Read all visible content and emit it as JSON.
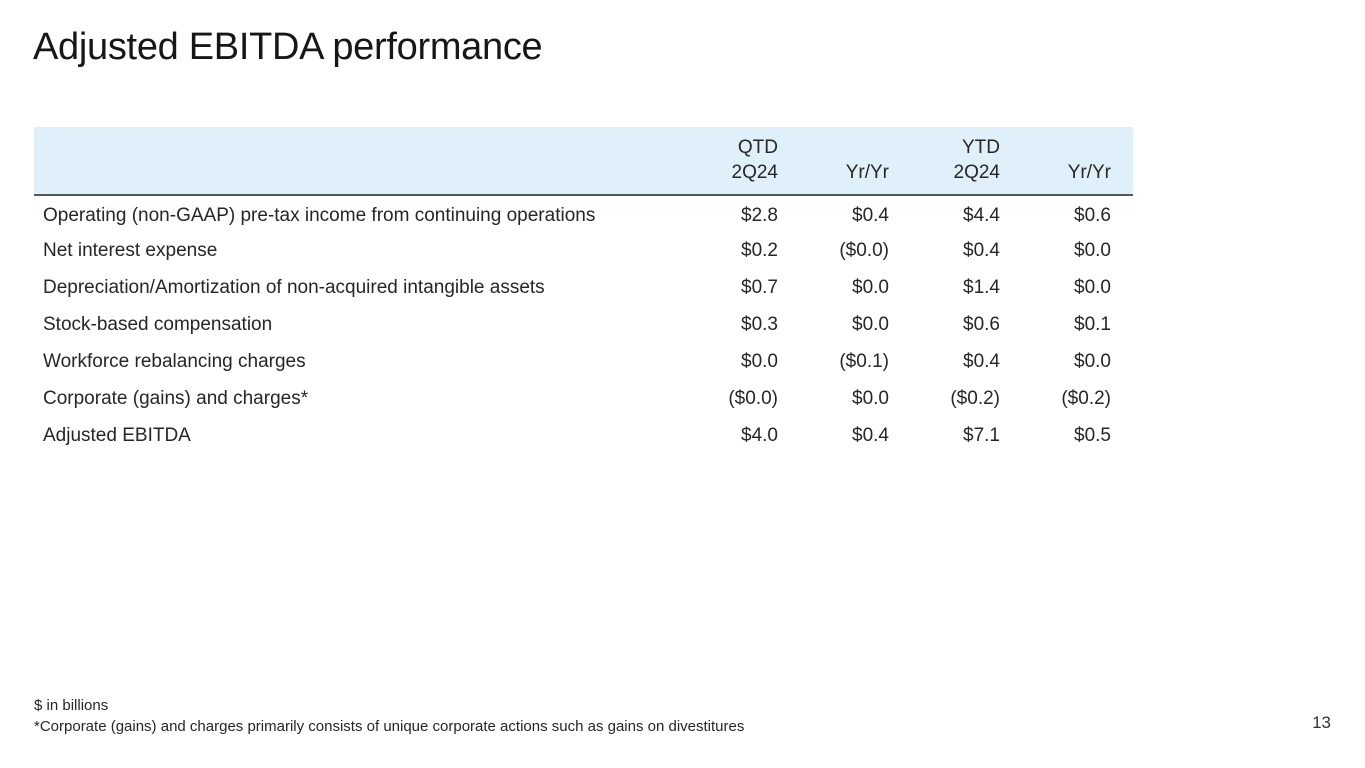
{
  "slide": {
    "title": "Adjusted EBITDA performance",
    "page_number": "13"
  },
  "table": {
    "header": {
      "row1": {
        "label": "",
        "c1": "QTD",
        "c2": "",
        "c3": "YTD",
        "c4": ""
      },
      "row2": {
        "label": "",
        "c1": "2Q24",
        "c2": "Yr/Yr",
        "c3": "2Q24",
        "c4": "Yr/Yr"
      }
    },
    "rows": [
      {
        "label": "Operating (non-GAAP) pre-tax income from continuing operations",
        "values": [
          "$2.8",
          "$0.4",
          "$4.4",
          "$0.6"
        ]
      },
      {
        "label": "Net interest expense",
        "values": [
          "$0.2",
          "($0.0)",
          "$0.4",
          "$0.0"
        ]
      },
      {
        "label": "Depreciation/Amortization of non-acquired intangible assets",
        "values": [
          "$0.7",
          "$0.0",
          "$1.4",
          "$0.0"
        ]
      },
      {
        "label": "Stock-based compensation",
        "values": [
          "$0.3",
          "$0.0",
          "$0.6",
          "$0.1"
        ]
      },
      {
        "label": "Workforce rebalancing charges",
        "values": [
          "$0.0",
          "($0.1)",
          "$0.4",
          "$0.0"
        ]
      },
      {
        "label": "Corporate (gains) and charges*",
        "values": [
          "($0.0)",
          "$0.0",
          "($0.2)",
          "($0.2)"
        ]
      },
      {
        "label": "Adjusted EBITDA",
        "values": [
          "$4.0",
          "$0.4",
          "$7.1",
          "$0.5"
        ]
      }
    ]
  },
  "footnotes": {
    "line1": "$ in billions",
    "line2": "*Corporate (gains) and charges primarily consists of unique corporate actions such as gains on divestitures"
  },
  "colors": {
    "header_background": "#dff0fa",
    "header_border": "#54595e",
    "text": "#262626"
  }
}
